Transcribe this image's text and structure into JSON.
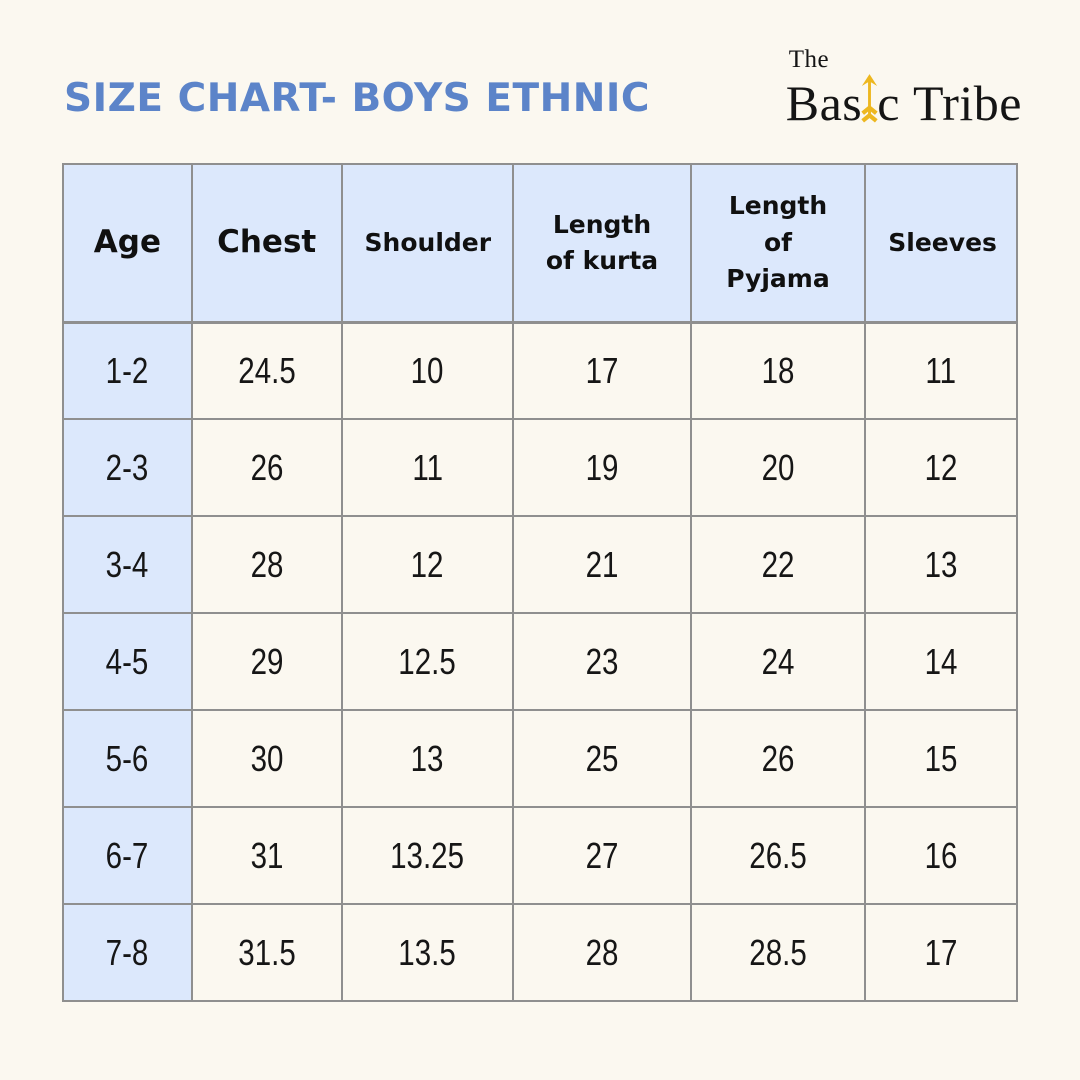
{
  "page": {
    "title": "SIZE CHART- BOYS ETHNIC"
  },
  "logo": {
    "line1": "The",
    "word1_part1": "Bas",
    "word1_part2": "c",
    "word2": "Tribe",
    "arrow_icon": "up-arrow"
  },
  "colors": {
    "background": "#fbf8f0",
    "title_blue": "#5c84c9",
    "cell_blue": "#dce8fc",
    "border_gray": "#8f8f8f",
    "arrow_gold": "#edb71f",
    "text_dark": "#151515"
  },
  "table": {
    "headers": [
      "Age",
      "Chest",
      "Shoulder",
      "Length of kurta",
      "Length of Pyjama",
      "Sleeves"
    ],
    "column_widths_pct": [
      13.5,
      15.7,
      18.0,
      18.6,
      18.3,
      15.9
    ],
    "rows": [
      {
        "age": "1-2",
        "values": [
          "24.5",
          "10",
          "17",
          "18",
          "11"
        ]
      },
      {
        "age": "2-3",
        "values": [
          "26",
          "11",
          "19",
          "20",
          "12"
        ]
      },
      {
        "age": "3-4",
        "values": [
          "28",
          "12",
          "21",
          "22",
          "13"
        ]
      },
      {
        "age": "4-5",
        "values": [
          "29",
          "12.5",
          "23",
          "24",
          "14"
        ]
      },
      {
        "age": "5-6",
        "values": [
          "30",
          "13",
          "25",
          "26",
          "15"
        ]
      },
      {
        "age": "6-7",
        "values": [
          "31",
          "13.25",
          "27",
          "26.5",
          "16"
        ]
      },
      {
        "age": "7-8",
        "values": [
          "31.5",
          "13.5",
          "28",
          "28.5",
          "17"
        ]
      }
    ]
  }
}
